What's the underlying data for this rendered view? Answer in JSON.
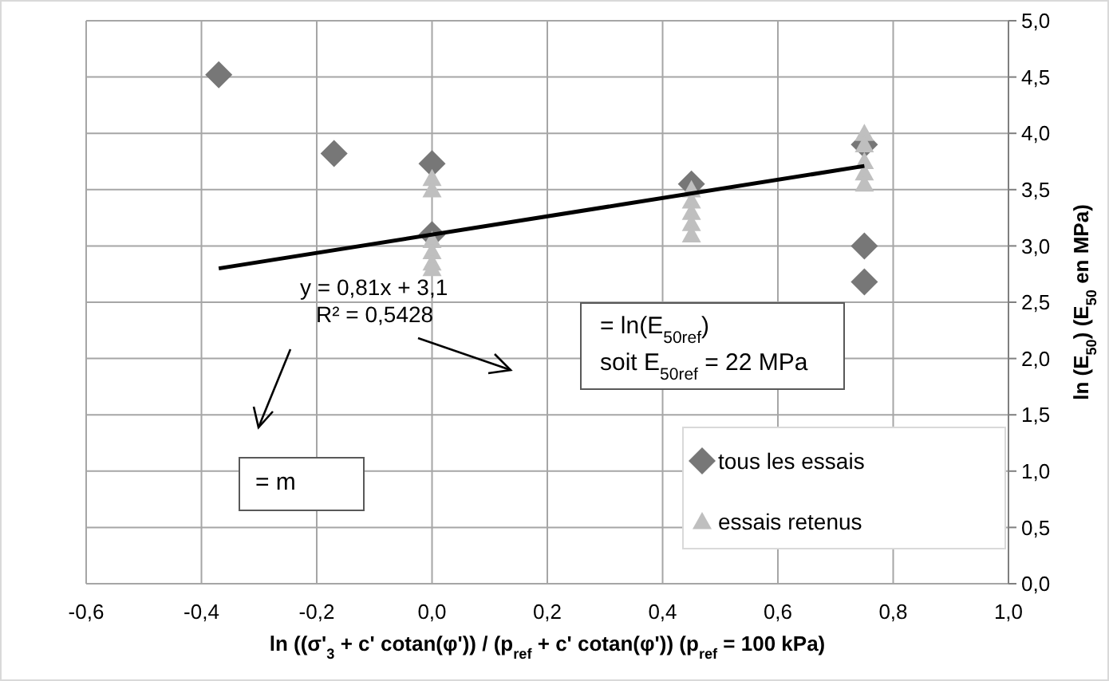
{
  "chart_data": {
    "type": "scatter",
    "xlabel": "ln ((σ'$_{3}$ + c' cotan(φ')) / (p$_{ref}$ + c' cotan(φ'))    (p$_{ref}$ = 100 kPa)",
    "ylabel": "ln (E$_{50}$) (E$_{50}$ en MPa)",
    "xlim": [
      -0.6,
      1.0
    ],
    "xticks": [
      {
        "value": -0.6,
        "label": "-0,6"
      },
      {
        "value": -0.4,
        "label": "-0,4"
      },
      {
        "value": -0.2,
        "label": "-0,2"
      },
      {
        "value": 0,
        "label": "0,0"
      },
      {
        "value": 0.2,
        "label": "0,2"
      },
      {
        "value": 0.4,
        "label": "0,4"
      },
      {
        "value": 0.6,
        "label": "0,6"
      },
      {
        "value": 0.8,
        "label": "0,8"
      },
      {
        "value": 1.0,
        "label": "1,0"
      }
    ],
    "ylim": [
      0,
      5
    ],
    "yticks": [
      {
        "value": 0,
        "label": "0,0"
      },
      {
        "value": 0.5,
        "label": "0,5"
      },
      {
        "value": 1,
        "label": "1,0"
      },
      {
        "value": 1.5,
        "label": "1,5"
      },
      {
        "value": 2,
        "label": "2,0"
      },
      {
        "value": 2.5,
        "label": "2,5"
      },
      {
        "value": 3,
        "label": "3,0"
      },
      {
        "value": 3.5,
        "label": "3,5"
      },
      {
        "value": 4,
        "label": "4,0"
      },
      {
        "value": 4.5,
        "label": "4,5"
      },
      {
        "value": 5,
        "label": "5,0"
      }
    ],
    "grid": true,
    "legend": "bottom right",
    "series": [
      {
        "name": "tous les essais",
        "color": "#777777",
        "marker": "diamond",
        "x": [
          -0.37,
          -0.17,
          0,
          0,
          0.45,
          0.75,
          0.75,
          0.75
        ],
        "values": [
          4.52,
          3.82,
          3.73,
          3.1,
          3.55,
          3.0,
          2.68,
          3.9
        ]
      },
      {
        "name": "essais retenus",
        "color": "#bfbfbf",
        "marker": "triangle",
        "x": [
          0,
          0,
          0,
          0,
          0,
          0,
          0.45,
          0.45,
          0.45,
          0.45,
          0.45,
          0.75,
          0.75,
          0.75,
          0.75,
          0.75
        ],
        "values": [
          3.6,
          3.5,
          3.05,
          2.95,
          2.85,
          2.8,
          3.5,
          3.4,
          3.3,
          3.2,
          3.1,
          4.0,
          3.9,
          3.75,
          3.65,
          3.55
        ]
      },
      {
        "type": "line",
        "color": "#000000",
        "marker": "none",
        "x": [
          -0.37,
          0.75
        ],
        "values": [
          2.8,
          3.71
        ]
      }
    ],
    "annotations": [
      "y = 0,81x + 3,1",
      "R² = 0,5428",
      "= ln(E$_{50ref}$)",
      "soit E$_{50ref}$ = 22 MPa",
      "= m"
    ]
  }
}
